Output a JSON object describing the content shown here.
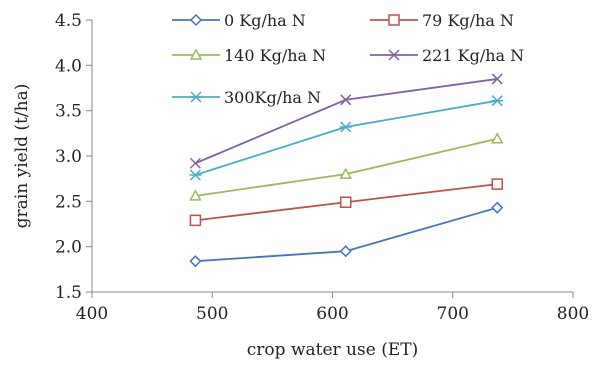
{
  "chart_data": {
    "type": "line",
    "title": "",
    "xlabel": "crop water use (ET)",
    "ylabel": "grain yield (t/ha)",
    "xlim": [
      400,
      800
    ],
    "ylim": [
      1.5,
      4.5
    ],
    "x_ticks": [
      "400",
      "500",
      "600",
      "700",
      "800"
    ],
    "y_ticks": [
      "1.5",
      "2.0",
      "2.5",
      "3.0",
      "3.5",
      "4.0",
      "4.5"
    ],
    "grid": false,
    "legend_position": "top",
    "series": [
      {
        "name": "0 Kg/ha N",
        "color": "#4472C4",
        "marker": "diamond",
        "x": [
          486,
          611,
          737
        ],
        "y": [
          1.84,
          1.95,
          2.43
        ]
      },
      {
        "name": "79 Kg/ha N",
        "color": "#C0504D",
        "marker": "square",
        "x": [
          486,
          611,
          737
        ],
        "y": [
          2.29,
          2.49,
          2.69
        ]
      },
      {
        "name": "140 Kg/ha N",
        "color": "#9BBB59",
        "marker": "triangle",
        "x": [
          486,
          611,
          737
        ],
        "y": [
          2.56,
          2.8,
          3.19
        ]
      },
      {
        "name": "221 Kg/ha N",
        "color": "#8064A2",
        "marker": "x",
        "x": [
          486,
          611,
          737
        ],
        "y": [
          2.92,
          3.62,
          3.85
        ]
      },
      {
        "name": "300Kg/ha N",
        "color": "#4BACC6",
        "marker": "asterisk",
        "x": [
          486,
          611,
          737
        ],
        "y": [
          2.79,
          3.32,
          3.61
        ]
      }
    ]
  }
}
